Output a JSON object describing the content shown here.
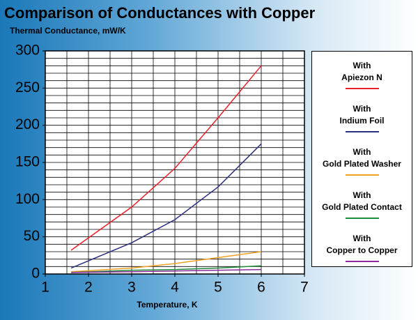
{
  "chart_data": {
    "type": "line",
    "title": "Comparison of Conductances with Copper",
    "subtitle": "Thermal Conductance, mW/K",
    "x_label": "Temperature, K",
    "xlim": [
      1,
      7
    ],
    "xticks": [
      1,
      2,
      3,
      4,
      5,
      6,
      7
    ],
    "ylim": [
      0,
      300
    ],
    "yticks": [
      0,
      50,
      100,
      150,
      200,
      250,
      300
    ],
    "grid": true,
    "xgrid": [
      1,
      1.5,
      2,
      2.5,
      3,
      3.5,
      4,
      4.5,
      5,
      5.5,
      6,
      6.5,
      7
    ],
    "ygrid": [
      0,
      10,
      20,
      30,
      40,
      50,
      60,
      70,
      80,
      90,
      100,
      110,
      120,
      130,
      140,
      150,
      160,
      170,
      180,
      190,
      200,
      210,
      220,
      230,
      240,
      250,
      260,
      270,
      280,
      290,
      300
    ],
    "legend": "right",
    "x": [
      1.6,
      3,
      4,
      5,
      6
    ],
    "series": [
      {
        "name": "With\nApiezon N",
        "color": "#e8202a",
        "values": [
          32,
          90,
          142,
          210,
          280
        ]
      },
      {
        "name": "With\nIndium Foil",
        "color": "#2b2f7f",
        "values": [
          8,
          42,
          73,
          117,
          175
        ]
      },
      {
        "name": "With\nGold Plated Washer",
        "color": "#f0a020",
        "values": [
          3,
          8,
          14,
          22,
          30
        ]
      },
      {
        "name": "With\nGold Plated Contact",
        "color": "#1f8a3a",
        "values": [
          2,
          5,
          6,
          8,
          11
        ]
      },
      {
        "name": "With\nCopper to Copper",
        "color": "#8a2a9a",
        "values": [
          2,
          3,
          4,
          5,
          6
        ]
      }
    ]
  }
}
